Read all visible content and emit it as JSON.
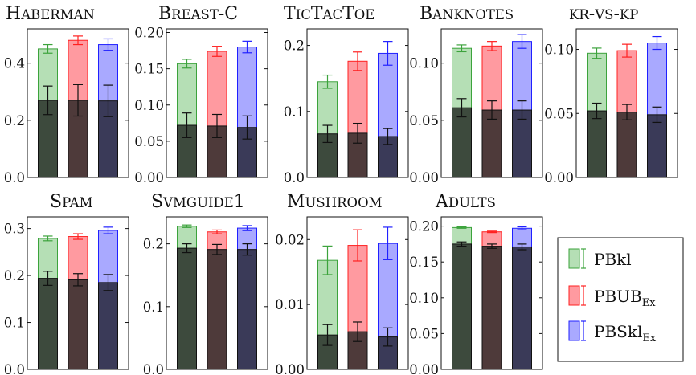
{
  "colors": {
    "pbkl_top": "#b5dfb5",
    "pbkl_edge": "#3ca33c",
    "pbkl_base": "#3d4a3d",
    "pbub_top": "#ff9aa0",
    "pbub_edge": "#ff2020",
    "pbub_base": "#4e3a3a",
    "pbskl_top": "#a9a9ff",
    "pbskl_edge": "#2020ff",
    "pbskl_base": "#3a3a58"
  },
  "legend": [
    {
      "main": "PBkl",
      "sub": ""
    },
    {
      "main": "PBUB",
      "sub": "Ex"
    },
    {
      "main": "PBSkl",
      "sub": "Ex"
    }
  ],
  "chart_data": [
    {
      "type": "bar",
      "title": "Haberman",
      "ylim": [
        0,
        0.52
      ],
      "yticks": [
        "0.0",
        "0.2",
        "0.4"
      ],
      "ytick_values": [
        0,
        0.2,
        0.4
      ],
      "series": [
        {
          "name": "PBkl",
          "values": [
            0.45
          ],
          "err": [
            0.015
          ],
          "lower": [
            0.27
          ],
          "lower_err": [
            0.05
          ]
        },
        {
          "name": "PBUB_Ex",
          "values": [
            0.48
          ],
          "err": [
            0.015
          ],
          "lower": [
            0.27
          ],
          "lower_err": [
            0.055
          ]
        },
        {
          "name": "PBSkl_Ex",
          "values": [
            0.465
          ],
          "err": [
            0.02
          ],
          "lower": [
            0.268
          ],
          "lower_err": [
            0.055
          ]
        }
      ]
    },
    {
      "type": "bar",
      "title": "Breast-C",
      "ylim": [
        0,
        0.205
      ],
      "yticks": [
        "0.00",
        "0.05",
        "0.10",
        "0.15",
        "0.20"
      ],
      "ytick_values": [
        0,
        0.05,
        0.1,
        0.15,
        0.2
      ],
      "series": [
        {
          "name": "PBkl",
          "values": [
            0.157
          ],
          "err": [
            0.006
          ],
          "lower": [
            0.072
          ],
          "lower_err": [
            0.017
          ]
        },
        {
          "name": "PBUB_Ex",
          "values": [
            0.174
          ],
          "err": [
            0.007
          ],
          "lower": [
            0.071
          ],
          "lower_err": [
            0.016
          ]
        },
        {
          "name": "PBSkl_Ex",
          "values": [
            0.18
          ],
          "err": [
            0.008
          ],
          "lower": [
            0.069
          ],
          "lower_err": [
            0.016
          ]
        }
      ]
    },
    {
      "type": "bar",
      "title": "TicTacToe",
      "ylim": [
        0,
        0.225
      ],
      "yticks": [
        "0.0",
        "0.1",
        "0.2"
      ],
      "ytick_values": [
        0,
        0.1,
        0.2
      ],
      "series": [
        {
          "name": "PBkl",
          "values": [
            0.145
          ],
          "err": [
            0.01
          ],
          "lower": [
            0.066
          ],
          "lower_err": [
            0.013
          ]
        },
        {
          "name": "PBUB_Ex",
          "values": [
            0.176
          ],
          "err": [
            0.014
          ],
          "lower": [
            0.067
          ],
          "lower_err": [
            0.015
          ]
        },
        {
          "name": "PBSkl_Ex",
          "values": [
            0.188
          ],
          "err": [
            0.018
          ],
          "lower": [
            0.062
          ],
          "lower_err": [
            0.012
          ]
        }
      ]
    },
    {
      "type": "bar",
      "title": "Banknotes",
      "ylim": [
        0,
        0.13
      ],
      "yticks": [
        "0.00",
        "0.05",
        "0.10"
      ],
      "ytick_values": [
        0,
        0.05,
        0.1
      ],
      "series": [
        {
          "name": "PBkl",
          "values": [
            0.113
          ],
          "err": [
            0.003
          ],
          "lower": [
            0.061
          ],
          "lower_err": [
            0.008
          ]
        },
        {
          "name": "PBUB_Ex",
          "values": [
            0.115
          ],
          "err": [
            0.004
          ],
          "lower": [
            0.059
          ],
          "lower_err": [
            0.008
          ]
        },
        {
          "name": "PBSkl_Ex",
          "values": [
            0.119
          ],
          "err": [
            0.006
          ],
          "lower": [
            0.059
          ],
          "lower_err": [
            0.008
          ]
        }
      ]
    },
    {
      "type": "bar",
      "title": "kr-vs-kp",
      "ylim": [
        0,
        0.116
      ],
      "yticks": [
        "0.00",
        "0.05",
        "0.10"
      ],
      "ytick_values": [
        0,
        0.05,
        0.1
      ],
      "series": [
        {
          "name": "PBkl",
          "values": [
            0.097
          ],
          "err": [
            0.004
          ],
          "lower": [
            0.052
          ],
          "lower_err": [
            0.006
          ]
        },
        {
          "name": "PBUB_Ex",
          "values": [
            0.099
          ],
          "err": [
            0.005
          ],
          "lower": [
            0.051
          ],
          "lower_err": [
            0.006
          ]
        },
        {
          "name": "PBSkl_Ex",
          "values": [
            0.105
          ],
          "err": [
            0.005
          ],
          "lower": [
            0.049
          ],
          "lower_err": [
            0.006
          ]
        }
      ]
    },
    {
      "type": "bar",
      "title": "Spam",
      "ylim": [
        0,
        0.325
      ],
      "yticks": [
        "0.0",
        "0.1",
        "0.2",
        "0.3"
      ],
      "ytick_values": [
        0,
        0.1,
        0.2,
        0.3
      ],
      "series": [
        {
          "name": "PBkl",
          "values": [
            0.279
          ],
          "err": [
            0.005
          ],
          "lower": [
            0.194
          ],
          "lower_err": [
            0.015
          ]
        },
        {
          "name": "PBUB_Ex",
          "values": [
            0.283
          ],
          "err": [
            0.006
          ],
          "lower": [
            0.191
          ],
          "lower_err": [
            0.013
          ]
        },
        {
          "name": "PBSkl_Ex",
          "values": [
            0.296
          ],
          "err": [
            0.007
          ],
          "lower": [
            0.185
          ],
          "lower_err": [
            0.017
          ]
        }
      ]
    },
    {
      "type": "bar",
      "title": "Svmguide1",
      "ylim": [
        0,
        0.243
      ],
      "yticks": [
        "0.0",
        "0.1",
        "0.2"
      ],
      "ytick_values": [
        0,
        0.1,
        0.2
      ],
      "series": [
        {
          "name": "PBkl",
          "values": [
            0.228
          ],
          "err": [
            0.002
          ],
          "lower": [
            0.193
          ],
          "lower_err": [
            0.007
          ]
        },
        {
          "name": "PBUB_Ex",
          "values": [
            0.219
          ],
          "err": [
            0.003
          ],
          "lower": [
            0.191
          ],
          "lower_err": [
            0.008
          ]
        },
        {
          "name": "PBSkl_Ex",
          "values": [
            0.225
          ],
          "err": [
            0.004
          ],
          "lower": [
            0.191
          ],
          "lower_err": [
            0.009
          ]
        }
      ]
    },
    {
      "type": "bar",
      "title": "Mushroom",
      "ylim": [
        0,
        0.0235
      ],
      "yticks": [
        "0.00",
        "0.01",
        "0.02"
      ],
      "ytick_values": [
        0,
        0.01,
        0.02
      ],
      "series": [
        {
          "name": "PBkl",
          "values": [
            0.0168
          ],
          "err": [
            0.0022
          ],
          "lower": [
            0.0053
          ],
          "lower_err": [
            0.0016
          ]
        },
        {
          "name": "PBUB_Ex",
          "values": [
            0.0191
          ],
          "err": [
            0.0024
          ],
          "lower": [
            0.0058
          ],
          "lower_err": [
            0.0015
          ]
        },
        {
          "name": "PBSkl_Ex",
          "values": [
            0.0194
          ],
          "err": [
            0.0025
          ],
          "lower": [
            0.005
          ],
          "lower_err": [
            0.0014
          ]
        }
      ]
    },
    {
      "type": "bar",
      "title": "Adults",
      "ylim": [
        0,
        0.213
      ],
      "yticks": [
        "0.00",
        "0.05",
        "0.10",
        "0.15",
        "0.20"
      ],
      "ytick_values": [
        0,
        0.05,
        0.1,
        0.15,
        0.2
      ],
      "series": [
        {
          "name": "PBkl",
          "values": [
            0.198
          ],
          "err": [
            0.001
          ],
          "lower": [
            0.175
          ],
          "lower_err": [
            0.003
          ]
        },
        {
          "name": "PBUB_Ex",
          "values": [
            0.192
          ],
          "err": [
            0.001
          ],
          "lower": [
            0.172
          ],
          "lower_err": [
            0.003
          ]
        },
        {
          "name": "PBSkl_Ex",
          "values": [
            0.197
          ],
          "err": [
            0.002
          ],
          "lower": [
            0.171
          ],
          "lower_err": [
            0.004
          ]
        }
      ]
    }
  ]
}
